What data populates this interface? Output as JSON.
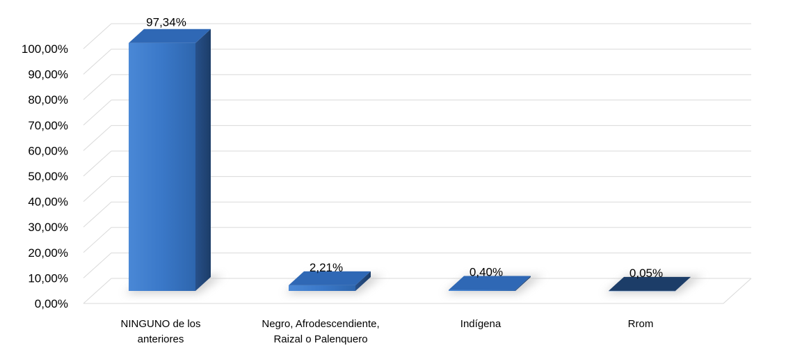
{
  "chart_data": {
    "type": "bar",
    "style": "3d-column",
    "categories": [
      [
        "NINGUNO de los",
        "anteriores"
      ],
      [
        "Negro, Afrodescendiente,",
        "Raizal o Palenquero"
      ],
      [
        "Indígena"
      ],
      [
        "Rrom"
      ]
    ],
    "values": [
      97.34,
      2.21,
      0.4,
      0.05
    ],
    "data_labels": [
      "97,34%",
      "2,21%",
      "0,40%",
      "0,05%"
    ],
    "y_ticks": [
      {
        "value": 0,
        "label": "0,00%"
      },
      {
        "value": 10,
        "label": "10,00%"
      },
      {
        "value": 20,
        "label": "20,00%"
      },
      {
        "value": 30,
        "label": "30,00%"
      },
      {
        "value": 40,
        "label": "40,00%"
      },
      {
        "value": 50,
        "label": "50,00%"
      },
      {
        "value": 60,
        "label": "60,00%"
      },
      {
        "value": 70,
        "label": "70,00%"
      },
      {
        "value": 80,
        "label": "80,00%"
      },
      {
        "value": 90,
        "label": "90,00%"
      },
      {
        "value": 100,
        "label": "100,00%"
      }
    ],
    "ylim": [
      0,
      100
    ],
    "grid": true,
    "legend": "none",
    "colors": {
      "bar_front": "#3a78c8",
      "bar_top": "#2f68b5",
      "bar_side": "#234a7e",
      "bar_side_dark": "#1c3d68",
      "gridline": "#d9d9d9",
      "shadow": "#bfbfbf"
    }
  }
}
